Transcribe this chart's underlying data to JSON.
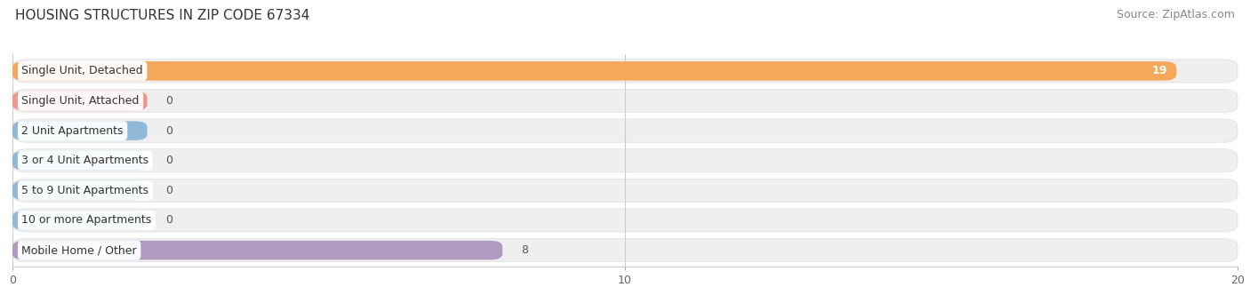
{
  "title": "HOUSING STRUCTURES IN ZIP CODE 67334",
  "source": "Source: ZipAtlas.com",
  "categories": [
    "Single Unit, Detached",
    "Single Unit, Attached",
    "2 Unit Apartments",
    "3 or 4 Unit Apartments",
    "5 to 9 Unit Apartments",
    "10 or more Apartments",
    "Mobile Home / Other"
  ],
  "values": [
    19,
    0,
    0,
    0,
    0,
    0,
    8
  ],
  "bar_colors": [
    "#F5A85A",
    "#F0968A",
    "#90B8D8",
    "#90B8D8",
    "#90B8D8",
    "#90B8D8",
    "#B09ABF"
  ],
  "row_bg_colors": [
    "#EDEDED",
    "#EDEDED",
    "#EDEDED",
    "#EDEDED",
    "#EDEDED",
    "#EDEDED",
    "#EDEDED"
  ],
  "xlim": [
    0,
    20
  ],
  "xticks": [
    0,
    10,
    20
  ],
  "label_fontsize": 9,
  "value_fontsize": 9,
  "title_fontsize": 11,
  "source_fontsize": 9,
  "background_color": "#ffffff",
  "grid_color": "#cccccc",
  "value_color_inside": "#ffffff",
  "value_color_outside": "#555555"
}
